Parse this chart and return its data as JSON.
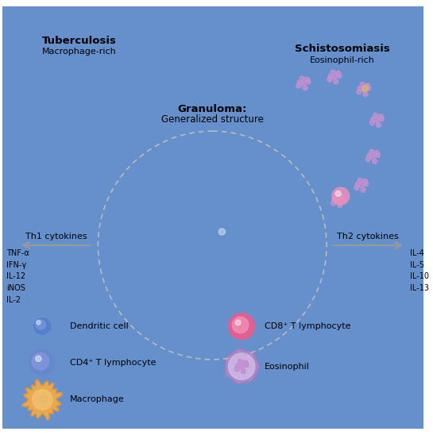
{
  "title_bold": "Granuloma:",
  "title_normal": "Generalized structure",
  "tb_title": "Tuberculosis",
  "tb_subtitle": "Macrophage-rich",
  "schisto_title": "Schistosomiasis",
  "schisto_subtitle": "Eosinophil-rich",
  "th1_label": "Th1 cytokines",
  "th2_label": "Th2 cytokines",
  "th1_cytokines": "TNF-α\nIFN-γ\nIL-12\niNOS\nIL-2",
  "th2_cytokines": "IL-4\nIL-5\nIL-10\nIL-13",
  "colors": {
    "cd4_outer": "#6688CC",
    "cd4_inner": "#8899DD",
    "cd4_highlight": "#AABBEE",
    "macrophage_outer": "#E8A850",
    "macrophage_fringe": "#D49040",
    "macrophage_inner": "#F0C070",
    "cd8_outer": "#E06090",
    "cd8_inner": "#F090B8",
    "eosinophil_outer": "#A888C8",
    "eosinophil_inner": "#D8C0E8",
    "eosinophil_granule": "#C090D0",
    "dendritic_body": "#5580CC",
    "dendritic_arm": "#6690CC",
    "granuloma_border": "#BBBBBB",
    "tb_fill": "#EDF2FA",
    "tb_border": "#8899BB",
    "schisto_oval": "#9090CC",
    "schisto_oval_inner": "#AAAAE0",
    "background": "#FFFFFF",
    "arrow_gray": "#999999",
    "text_black": "#000000"
  }
}
